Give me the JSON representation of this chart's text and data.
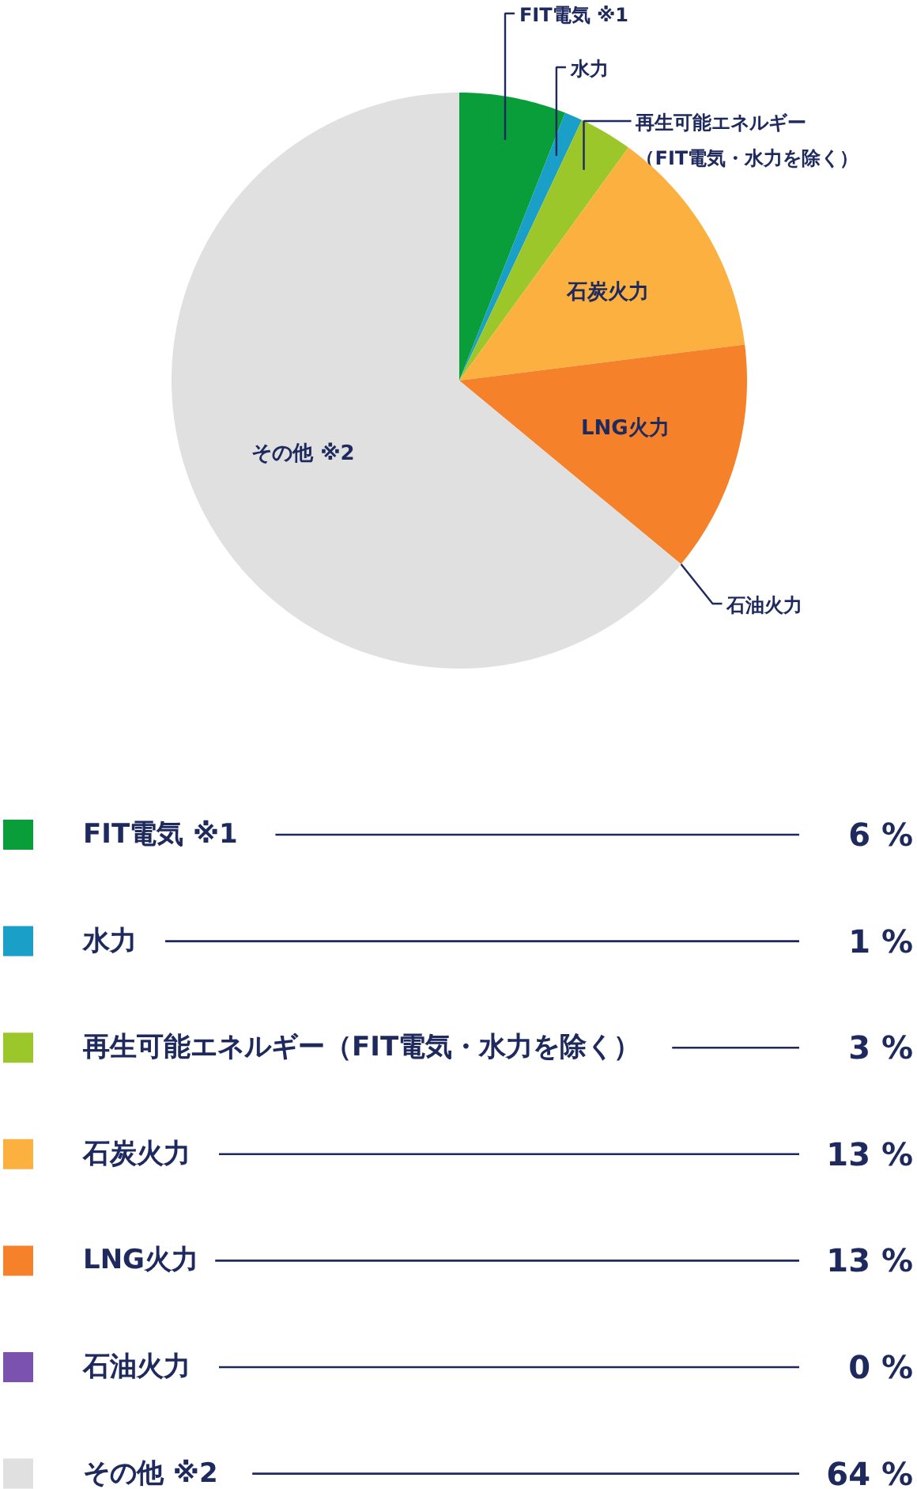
{
  "chart_data": {
    "type": "pie",
    "categories": [
      "FIT電気 ※1",
      "水力",
      "再生可能エネルギー（FIT電気・水力を除く）",
      "石炭火力",
      "LNG火力",
      "石油火力",
      "その他 ※2"
    ],
    "values": [
      6,
      1,
      3,
      13,
      13,
      0,
      64
    ],
    "colors": [
      "#0a9e3a",
      "#1aa0c8",
      "#9cc72a",
      "#fbb040",
      "#f5822a",
      "#7b52ae",
      "#e0e0e0"
    ],
    "value_labels": [
      "6 %",
      "1 %",
      "3 %",
      "13 %",
      "13 %",
      "0 %",
      "64 %"
    ],
    "legend": "bottom"
  }
}
